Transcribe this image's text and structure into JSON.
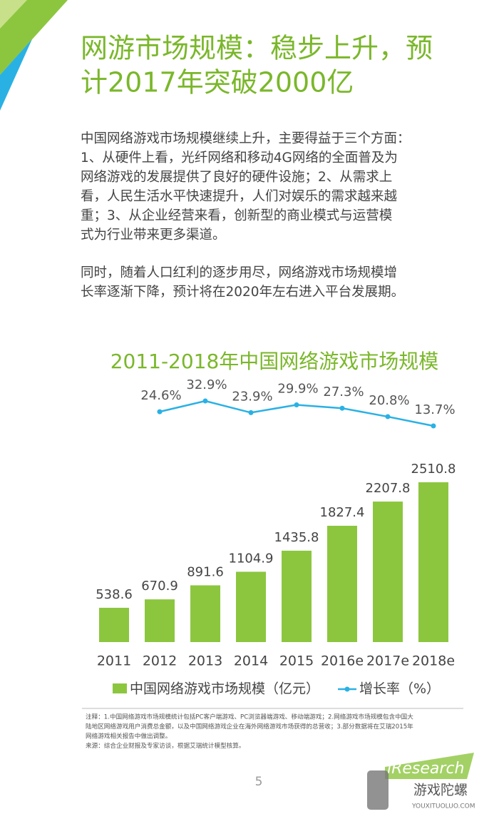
{
  "header": {
    "title_lines": [
      "网游市场规模：稳步上升，预",
      "计2017年突破2000亿"
    ]
  },
  "paragraphs": [
    [
      "中国网络游戏市场规模继续上升，主要得益于三个方面：",
      "1、从硬件上看，光纤网络和移动4G网络的全面普及为",
      "网络游戏的发展提供了良好的硬件设施；2、从需求上",
      "看，人民生活水平快速提升，人们对娱乐的需求越来越",
      "重；3、从企业经营来看，创新型的商业模式与运营模",
      "式为行业带来更多渠道。"
    ],
    [
      "同时，随着人口红利的逐步用尽，网络游戏市场规模增",
      "长率逐渐下降，预计将在2020年左右进入平台发展期。"
    ]
  ],
  "chart_data": {
    "type": "bar-line",
    "title": "2011-2018年中国网络游戏市场规模",
    "categories": [
      "2011",
      "2012",
      "2013",
      "2014",
      "2015",
      "2016e",
      "2017e",
      "2018e"
    ],
    "series": [
      {
        "name": "中国网络游戏市场规模（亿元）",
        "type": "bar",
        "color": "#8cc63f",
        "values": [
          538.6,
          670.9,
          891.6,
          1104.9,
          1435.8,
          1827.4,
          2207.8,
          2510.8
        ]
      },
      {
        "name": "增长率（%）",
        "type": "line",
        "color": "#2ab1e4",
        "values": [
          null,
          24.6,
          32.9,
          23.9,
          29.9,
          27.3,
          20.8,
          13.7
        ],
        "value_labels": [
          null,
          "24.6%",
          "32.9%",
          "23.9%",
          "29.9%",
          "27.3%",
          "20.8%",
          "13.7%"
        ]
      }
    ]
  },
  "notes": [
    "注释：1.中国网络游戏市场规模统计包括PC客户端游戏、PC浏览器端游戏、移动端游戏；2.网络游戏市场规模包含中国大",
    "陆地区网络游戏用户消费总金额，以及中国网络游戏企业在海外网络游戏市场获得的总营收；3.部分数据将在艾瑞2015年",
    "网络游戏相关报告中做出调整。",
    "来源：综合企业财报及专家访谈，根据艾瑞统计模型核算。"
  ],
  "page_number": "5",
  "logo": {
    "brand": "iResearch",
    "watermark": "游戏陀螺",
    "watermark_url": "YOUXITUOLUO.COM"
  }
}
